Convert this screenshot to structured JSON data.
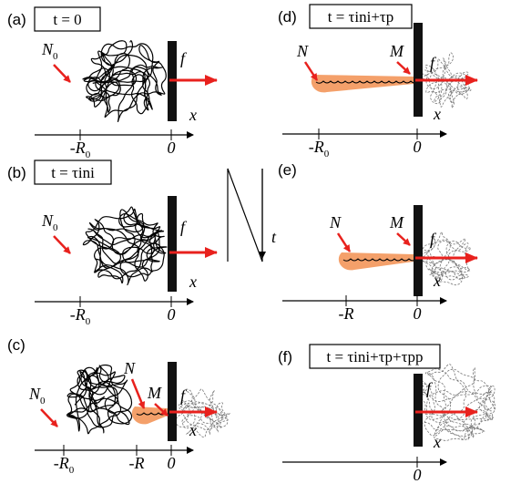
{
  "panels": [
    {
      "label": "(a)",
      "time": "t = 0",
      "n_label": {
        "main": "N",
        "sub": "0"
      },
      "force": "f",
      "axis": "x",
      "ticks": [
        {
          "main": "-R",
          "sub": "0"
        },
        {
          "main": "0"
        }
      ]
    },
    {
      "label": "(b)",
      "time": "t = τini",
      "n_label": {
        "main": "N",
        "sub": "0"
      },
      "force": "f",
      "axis": "x",
      "ticks": [
        {
          "main": "-R",
          "sub": "0"
        },
        {
          "main": "0"
        }
      ]
    },
    {
      "label": "(c)",
      "n_label": {
        "main": "N",
        "sub": "0"
      },
      "n_mark": "N",
      "m_mark": "M",
      "force": "f",
      "axis": "x",
      "ticks": [
        {
          "main": "-R",
          "sub": "0"
        },
        {
          "main": "-R"
        },
        {
          "main": "0"
        }
      ]
    },
    {
      "label": "(d)",
      "time": "t = τini+τp",
      "n_mark": "N",
      "m_mark": "M",
      "force": "f",
      "axis": "x",
      "ticks": [
        {
          "main": "-R",
          "sub": "0"
        },
        {
          "main": "0"
        }
      ]
    },
    {
      "label": "(e)",
      "n_mark": "N",
      "m_mark": "M",
      "force": "f",
      "axis": "x",
      "ticks": [
        {
          "main": "-R"
        },
        {
          "main": "0"
        }
      ]
    },
    {
      "label": "(f)",
      "time": "t = τini+τp+τpp",
      "force": "f",
      "axis": "x",
      "ticks": [
        {
          "main": "0"
        }
      ]
    }
  ],
  "time_arrow_label": "t"
}
